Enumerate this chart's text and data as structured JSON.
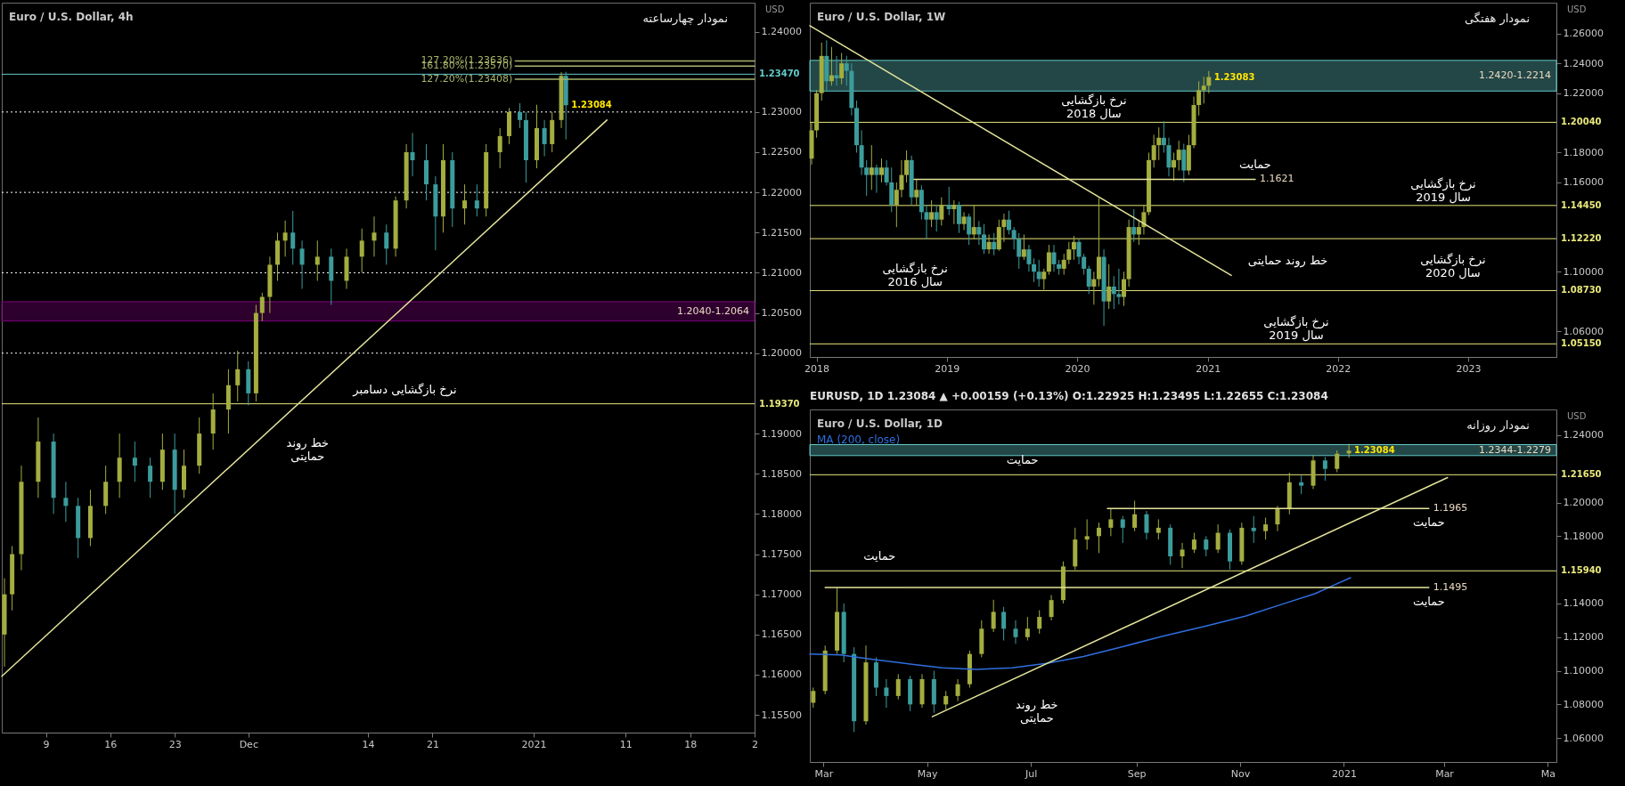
{
  "chart_data": [
    {
      "type": "candlestick",
      "title": "Euro / U.S. Dollar, 4h",
      "subtitle": "نمودار چهارساعته",
      "ylabel": "USD",
      "xlim": [
        "2020-11-04T05:00",
        "2021-01-25"
      ],
      "xticks": [
        {
          "value": "2020-11-09",
          "label": "9"
        },
        {
          "value": "2020-11-16",
          "label": "16"
        },
        {
          "value": "2020-11-23",
          "label": "23"
        },
        {
          "value": "2020-12-01",
          "label": "Dec"
        },
        {
          "value": "2020-12-14",
          "label": "14"
        },
        {
          "value": "2020-12-21",
          "label": "21"
        },
        {
          "value": "2021-01-01",
          "label": "2021"
        },
        {
          "value": "2021-01-11",
          "label": "11"
        },
        {
          "value": "2021-01-18",
          "label": "18"
        },
        {
          "value": "2021-01-25",
          "label": "2"
        }
      ],
      "ylim": [
        1.1528,
        1.2436
      ],
      "yticks": [
        {
          "value": 1.155,
          "label": "1.15500"
        },
        {
          "value": 1.16,
          "label": "1.16000"
        },
        {
          "value": 1.165,
          "label": "1.16500"
        },
        {
          "value": 1.17,
          "label": "1.17000"
        },
        {
          "value": 1.175,
          "label": "1.17500"
        },
        {
          "value": 1.18,
          "label": "1.18000"
        },
        {
          "value": 1.185,
          "label": "1.18500"
        },
        {
          "value": 1.19,
          "label": "1.19000"
        },
        {
          "value": 1.2,
          "label": "1.20000"
        },
        {
          "value": 1.205,
          "label": "1.20500"
        },
        {
          "value": 1.21,
          "label": "1.21000"
        },
        {
          "value": 1.215,
          "label": "1.21500"
        },
        {
          "value": 1.22,
          "label": "1.22000"
        },
        {
          "value": 1.225,
          "label": "1.22500"
        },
        {
          "value": 1.23,
          "label": "1.23000"
        },
        {
          "value": 1.24,
          "label": "1.24000"
        }
      ],
      "series": [
        {
          "color": "#a4ad3f",
          "x": [
            "2020-11-04T12:00",
            "2020-11-05T08:00",
            "2020-11-06T08:00",
            "2020-11-08T04:00",
            "2020-11-13T20:00",
            "2020-11-15T12:00",
            "2020-11-17T00:00",
            "2020-11-21T16:00",
            "2020-11-24T00:00",
            "2020-11-25T16:00",
            "2020-11-27T04:00",
            "2020-11-28T20:00",
            "2020-11-29T20:00",
            "2020-12-01T20:00",
            "2020-12-02T12:00",
            "2020-12-03T08:00",
            "2020-12-04T04:00",
            "2020-12-05T00:00",
            "2020-12-08T12:00",
            "2020-12-11T16:00",
            "2020-12-13T08:00",
            "2020-12-14T16:00",
            "2020-12-17T00:00",
            "2020-12-18T04:00",
            "2020-12-22T04:00",
            "2020-12-24T12:00",
            "2020-12-26T20:00",
            "2020-12-28T08:00",
            "2020-12-29T08:00",
            "2021-01-01T08:00",
            "2021-01-03T00:00",
            "2021-01-04T00:00"
          ],
          "ohlc": [
            [
              1.165,
              1.172,
              1.161,
              1.17
            ],
            [
              1.17,
              1.176,
              1.168,
              1.175
            ],
            [
              1.175,
              1.186,
              1.173,
              1.184
            ],
            [
              1.184,
              1.192,
              1.182,
              1.189
            ],
            [
              1.177,
              1.183,
              1.176,
              1.181
            ],
            [
              1.181,
              1.186,
              1.18,
              1.184
            ],
            [
              1.184,
              1.19,
              1.182,
              1.187
            ],
            [
              1.184,
              1.19,
              1.183,
              1.188
            ],
            [
              1.183,
              1.188,
              1.182,
              1.186
            ],
            [
              1.186,
              1.192,
              1.185,
              1.19
            ],
            [
              1.19,
              1.195,
              1.188,
              1.193
            ],
            [
              1.193,
              1.198,
              1.19,
              1.196
            ],
            [
              1.196,
              1.2003,
              1.194,
              1.198
            ],
            [
              1.195,
              1.206,
              1.194,
              1.205
            ],
            [
              1.205,
              1.2075,
              1.204,
              1.207
            ],
            [
              1.207,
              1.212,
              1.205,
              1.211
            ],
            [
              1.211,
              1.215,
              1.209,
              1.214
            ],
            [
              1.214,
              1.2165,
              1.212,
              1.215
            ],
            [
              1.211,
              1.214,
              1.209,
              1.212
            ],
            [
              1.209,
              1.213,
              1.208,
              1.212
            ],
            [
              1.212,
              1.2155,
              1.21,
              1.214
            ],
            [
              1.214,
              1.217,
              1.212,
              1.215
            ],
            [
              1.213,
              1.2195,
              1.212,
              1.219
            ],
            [
              1.219,
              1.226,
              1.218,
              1.225
            ],
            [
              1.217,
              1.226,
              1.215,
              1.224
            ],
            [
              1.218,
              1.221,
              1.216,
              1.219
            ],
            [
              1.218,
              1.226,
              1.217,
              1.225
            ],
            [
              1.225,
              1.228,
              1.223,
              1.227
            ],
            [
              1.227,
              1.2305,
              1.226,
              1.23
            ],
            [
              1.224,
              1.2309,
              1.223,
              1.228
            ],
            [
              1.226,
              1.23,
              1.225,
              1.229
            ],
            [
              1.229,
              1.23495,
              1.228,
              1.2345
            ]
          ]
        },
        {
          "color": "#3c9c9c",
          "x": [
            "2020-11-09T20:00",
            "2020-11-11T04:00",
            "2020-11-12T12:00",
            "2020-11-18T16:00",
            "2020-11-20T08:00",
            "2020-11-23T00:00",
            "2020-12-01T00:00",
            "2020-12-05T20:00",
            "2020-12-06T20:00",
            "2020-12-10T00:00",
            "2020-12-16T00:00",
            "2020-12-18T20:00",
            "2020-12-20T08:00",
            "2020-12-21T08:00",
            "2020-12-23T04:00",
            "2020-12-25T20:00",
            "2020-12-30T12:00",
            "2020-12-31T04:00",
            "2021-01-02T04:00",
            "2021-01-04T12:00"
          ],
          "ohlc": [
            [
              1.189,
              1.19,
              1.18,
              1.182
            ],
            [
              1.182,
              1.184,
              1.179,
              1.181
            ],
            [
              1.181,
              1.182,
              1.1745,
              1.177
            ],
            [
              1.187,
              1.189,
              1.184,
              1.186
            ],
            [
              1.186,
              1.187,
              1.182,
              1.184
            ],
            [
              1.188,
              1.19,
              1.18,
              1.183
            ],
            [
              1.198,
              1.199,
              1.1935,
              1.195
            ],
            [
              1.215,
              1.2177,
              1.211,
              1.213
            ],
            [
              1.213,
              1.214,
              1.208,
              1.211
            ],
            [
              1.212,
              1.213,
              1.206,
              1.209
            ],
            [
              1.215,
              1.216,
              1.211,
              1.213
            ],
            [
              1.225,
              1.2274,
              1.222,
              1.224
            ],
            [
              1.224,
              1.226,
              1.219,
              1.221
            ],
            [
              1.221,
              1.222,
              1.2128,
              1.217
            ],
            [
              1.224,
              1.225,
              1.2157,
              1.218
            ],
            [
              1.219,
              1.221,
              1.217,
              1.218
            ],
            [
              1.23,
              1.2311,
              1.228,
              1.229
            ],
            [
              1.229,
              1.23,
              1.2212,
              1.224
            ],
            [
              1.228,
              1.229,
              1.2245,
              1.226
            ],
            [
              1.2345,
              1.235,
              1.2266,
              1.23084
            ]
          ]
        },
        {
          "type": "line",
          "color": "#e3e39a",
          "x": [
            "2020-11-04T05:00",
            "2021-01-08T23:00"
          ],
          "values": [
            1.1598,
            1.229
          ]
        },
        {
          "type": "line",
          "name": "127.20%(1.23636)",
          "color": "#a9b46a",
          "x": [
            "2020-12-30T00:00",
            "2021-01-25"
          ],
          "values": [
            1.23636,
            1.23636
          ]
        },
        {
          "type": "line",
          "name": "161.80%(1.23570)",
          "color": "#a9b46a",
          "x": [
            "2020-12-30T00:00",
            "2021-01-25"
          ],
          "values": [
            1.2357,
            1.2357
          ]
        },
        {
          "type": "line",
          "name": "127.20%(1.23408)",
          "color": "#a9b46a",
          "x": [
            "2020-12-30T00:00",
            "2021-01-25"
          ],
          "values": [
            1.23408,
            1.23408
          ]
        }
      ],
      "ref_lines": [
        {
          "axis": "y",
          "value": 1.2347,
          "label": "1.23470",
          "color": "#63c9c9"
        },
        {
          "axis": "y",
          "value": 1.23,
          "color": "#ffffff",
          "line_style": "dotted"
        },
        {
          "axis": "y",
          "value": 1.22,
          "color": "#ffffff",
          "line_style": "dotted"
        },
        {
          "axis": "y",
          "value": 1.21,
          "color": "#ffffff",
          "line_style": "dotted"
        },
        {
          "axis": "y",
          "value": 1.2,
          "color": "#ffffff",
          "line_style": "dotted"
        },
        {
          "axis": "y",
          "value": 1.1937,
          "label": "1.19370",
          "color": "#e8e87c"
        }
      ],
      "bands": [
        {
          "axis": "y",
          "from": 1.204,
          "to": 1.2064,
          "label": "1.2040-1.2064",
          "color": "#800080"
        }
      ],
      "annotations": [
        {
          "text": "1.23084",
          "x": "2021-01-04T12:00",
          "y": 1.23084
        },
        {
          "text": "نرخ بازگشایی دسامبر",
          "x": "2020-12-18",
          "y": 1.1937
        },
        {
          "text": "خط روند\nحمایتی",
          "x": "2020-12-03T20:00",
          "y": 1.1914
        }
      ]
    },
    {
      "type": "candlestick",
      "title": "Euro / U.S. Dollar, 1W",
      "subtitle": "نمودار هفتگی",
      "ylabel": "USD",
      "xlim": [
        "2017-12-13",
        "2023-09-05"
      ],
      "xticks": [
        {
          "value": "2018-01-01",
          "label": "2018"
        },
        {
          "value": "2019-01-01",
          "label": "2019"
        },
        {
          "value": "2020-01-01",
          "label": "2020"
        },
        {
          "value": "2021-01-01",
          "label": "2021"
        },
        {
          "value": "2022-01-01",
          "label": "2022"
        },
        {
          "value": "2023-01-01",
          "label": "2023"
        }
      ],
      "ylim": [
        1.0427,
        1.2808
      ],
      "yticks": [
        {
          "value": 1.06,
          "label": "1.06000"
        },
        {
          "value": 1.1,
          "label": "1.10000"
        },
        {
          "value": 1.16,
          "label": "1.16000"
        },
        {
          "value": 1.18,
          "label": "1.18000"
        },
        {
          "value": 1.22,
          "label": "1.22000"
        },
        {
          "value": 1.24,
          "label": "1.24000"
        },
        {
          "value": 1.26,
          "label": "1.26000"
        }
      ],
      "series": [
        {
          "color": "#a4ad3f",
          "x": [
            "2017-12-18",
            "2018-01-01",
            "2018-01-15",
            "2018-02-12",
            "2018-03-12",
            "2018-06-04",
            "2018-07-02",
            "2018-08-13",
            "2018-08-27",
            "2018-09-10",
            "2018-10-08",
            "2018-11-19",
            "2018-12-17",
            "2019-01-21",
            "2019-02-18",
            "2019-03-18",
            "2019-04-29",
            "2019-05-27",
            "2019-06-10",
            "2019-08-05",
            "2019-09-30",
            "2019-10-14",
            "2019-11-25",
            "2019-12-09",
            "2019-12-23",
            "2020-02-17",
            "2020-03-02",
            "2020-03-30",
            "2020-05-11",
            "2020-05-25",
            "2020-06-22",
            "2020-07-06",
            "2020-07-20",
            "2020-08-03",
            "2020-08-17",
            "2020-09-28",
            "2020-10-12",
            "2020-11-09",
            "2020-11-23",
            "2020-12-07",
            "2020-12-21",
            "2021-01-04"
          ],
          "ohlc": [
            [
              1.176,
              1.2,
              1.172,
              1.195
            ],
            [
              1.195,
              1.222,
              1.19,
              1.22
            ],
            [
              1.22,
              1.254,
              1.215,
              1.245
            ],
            [
              1.228,
              1.251,
              1.225,
              1.232
            ],
            [
              1.23,
              1.247,
              1.226,
              1.24
            ],
            [
              1.165,
              1.185,
              1.155,
              1.17
            ],
            [
              1.165,
              1.176,
              1.16,
              1.17
            ],
            [
              1.145,
              1.16,
              1.13,
              1.155
            ],
            [
              1.155,
              1.175,
              1.15,
              1.165
            ],
            [
              1.165,
              1.1815,
              1.16,
              1.175
            ],
            [
              1.15,
              1.162,
              1.145,
              1.155
            ],
            [
              1.135,
              1.148,
              1.13,
              1.14
            ],
            [
              1.135,
              1.15,
              1.131,
              1.145
            ],
            [
              1.142,
              1.148,
              1.132,
              1.145
            ],
            [
              1.132,
              1.14,
              1.128,
              1.137
            ],
            [
              1.125,
              1.145,
              1.122,
              1.13
            ],
            [
              1.115,
              1.125,
              1.112,
              1.12
            ],
            [
              1.115,
              1.135,
              1.114,
              1.13
            ],
            [
              1.13,
              1.139,
              1.12,
              1.135
            ],
            [
              1.11,
              1.125,
              1.108,
              1.115
            ],
            [
              1.095,
              1.102,
              1.088,
              1.1
            ],
            [
              1.1,
              1.118,
              1.098,
              1.113
            ],
            [
              1.102,
              1.112,
              1.098,
              1.108
            ],
            [
              1.108,
              1.12,
              1.105,
              1.115
            ],
            [
              1.115,
              1.124,
              1.108,
              1.12
            ],
            [
              1.09,
              1.1,
              1.0778,
              1.095
            ],
            [
              1.095,
              1.1495,
              1.09,
              1.11
            ],
            [
              1.08,
              1.105,
              1.075,
              1.09
            ],
            [
              1.083,
              1.1,
              1.077,
              1.095
            ],
            [
              1.095,
              1.135,
              1.09,
              1.13
            ],
            [
              1.125,
              1.135,
              1.118,
              1.13
            ],
            [
              1.13,
              1.145,
              1.125,
              1.14
            ],
            [
              1.14,
              1.18,
              1.138,
              1.175
            ],
            [
              1.175,
              1.192,
              1.17,
              1.185
            ],
            [
              1.185,
              1.197,
              1.175,
              1.19
            ],
            [
              1.17,
              1.18,
              1.161,
              1.175
            ],
            [
              1.175,
              1.188,
              1.168,
              1.182
            ],
            [
              1.168,
              1.192,
              1.165,
              1.185
            ],
            [
              1.185,
              1.2177,
              1.183,
              1.212
            ],
            [
              1.212,
              1.228,
              1.205,
              1.222
            ],
            [
              1.222,
              1.231,
              1.213,
              1.225
            ],
            [
              1.225,
              1.2349,
              1.22,
              1.23083
            ]
          ]
        },
        {
          "color": "#3c9c9c",
          "x": [
            "2018-01-29",
            "2018-02-26",
            "2018-03-26",
            "2018-04-09",
            "2018-04-23",
            "2018-05-07",
            "2018-05-21",
            "2018-06-18",
            "2018-07-16",
            "2018-07-30",
            "2018-09-24",
            "2018-10-22",
            "2018-11-05",
            "2018-12-03",
            "2019-01-07",
            "2019-02-04",
            "2019-03-04",
            "2019-04-01",
            "2019-04-15",
            "2019-05-13",
            "2019-06-24",
            "2019-07-08",
            "2019-07-22",
            "2019-08-19",
            "2019-09-02",
            "2019-09-16",
            "2019-10-28",
            "2019-11-11",
            "2020-01-06",
            "2020-01-20",
            "2020-02-03",
            "2020-03-16",
            "2020-04-13",
            "2020-04-27",
            "2020-06-08",
            "2020-08-31",
            "2020-09-14",
            "2020-10-26"
          ],
          "ohlc": [
            [
              1.245,
              1.2555,
              1.221,
              1.228
            ],
            [
              1.232,
              1.245,
              1.225,
              1.23
            ],
            [
              1.24,
              1.245,
              1.225,
              1.235
            ],
            [
              1.235,
              1.24,
              1.205,
              1.21
            ],
            [
              1.21,
              1.215,
              1.18,
              1.185
            ],
            [
              1.185,
              1.195,
              1.165,
              1.17
            ],
            [
              1.17,
              1.175,
              1.151,
              1.165
            ],
            [
              1.17,
              1.172,
              1.153,
              1.165
            ],
            [
              1.17,
              1.175,
              1.158,
              1.16
            ],
            [
              1.16,
              1.17,
              1.14,
              1.145
            ],
            [
              1.175,
              1.178,
              1.145,
              1.15
            ],
            [
              1.155,
              1.158,
              1.135,
              1.14
            ],
            [
              1.14,
              1.145,
              1.122,
              1.135
            ],
            [
              1.14,
              1.145,
              1.127,
              1.135
            ],
            [
              1.145,
              1.157,
              1.138,
              1.142
            ],
            [
              1.145,
              1.147,
              1.126,
              1.132
            ],
            [
              1.137,
              1.139,
              1.118,
              1.125
            ],
            [
              1.13,
              1.134,
              1.118,
              1.125
            ],
            [
              1.125,
              1.132,
              1.112,
              1.115
            ],
            [
              1.12,
              1.126,
              1.111,
              1.115
            ],
            [
              1.135,
              1.141,
              1.125,
              1.128
            ],
            [
              1.128,
              1.13,
              1.115,
              1.122
            ],
            [
              1.122,
              1.126,
              1.102,
              1.11
            ],
            [
              1.115,
              1.118,
              1.1,
              1.105
            ],
            [
              1.105,
              1.109,
              1.093,
              1.1
            ],
            [
              1.1,
              1.108,
              1.09,
              1.095
            ],
            [
              1.113,
              1.118,
              1.1,
              1.105
            ],
            [
              1.105,
              1.108,
              1.098,
              1.102
            ],
            [
              1.12,
              1.122,
              1.105,
              1.11
            ],
            [
              1.11,
              1.112,
              1.098,
              1.102
            ],
            [
              1.102,
              1.104,
              1.085,
              1.09
            ],
            [
              1.11,
              1.115,
              1.0636,
              1.08
            ],
            [
              1.09,
              1.097,
              1.075,
              1.085
            ],
            [
              1.085,
              1.102,
              1.078,
              1.083
            ],
            [
              1.13,
              1.142,
              1.12,
              1.125
            ],
            [
              1.19,
              1.2011,
              1.18,
              1.185
            ],
            [
              1.185,
              1.19,
              1.164,
              1.17
            ],
            [
              1.182,
              1.186,
              1.1602,
              1.168
            ]
          ]
        },
        {
          "type": "line",
          "color": "#e3e39a",
          "x": [
            "2017-12-13",
            "2021-03-08"
          ],
          "values": [
            1.2653,
            1.0975
          ]
        },
        {
          "type": "line",
          "name": "1.1621",
          "color": "#e3e39a",
          "x": [
            "2018-10-01",
            "2021-05-14"
          ],
          "values": [
            1.1621,
            1.1621
          ]
        }
      ],
      "ref_lines": [
        {
          "axis": "y",
          "value": 1.2004,
          "label": "1.20040",
          "color": "#e8e87c"
        },
        {
          "axis": "y",
          "value": 1.1445,
          "label": "1.14450",
          "color": "#e8e87c"
        },
        {
          "axis": "y",
          "value": 1.1222,
          "label": "1.12220",
          "color": "#e8e87c"
        },
        {
          "axis": "y",
          "value": 1.0873,
          "label": "1.08730",
          "color": "#e8e87c"
        },
        {
          "axis": "y",
          "value": 1.0515,
          "label": "1.05150",
          "color": "#e8e87c"
        }
      ],
      "bands": [
        {
          "axis": "y",
          "from": 1.2214,
          "to": 1.242,
          "label": "1.2420-1.2214",
          "color": "#63c9c9"
        }
      ],
      "annotations": [
        {
          "text": "1.23083",
          "x": "2021-01-04",
          "y": 1.23083
        },
        {
          "text": "نرخ بازگشایی\nسال 2018",
          "x": "2020-02-17",
          "y": 1.2004
        },
        {
          "text": "حمایت",
          "x": "2021-05-14",
          "y": 1.1621
        },
        {
          "text": "نرخ بازگشایی\nسال 2019",
          "x": "2022-10-23",
          "y": 1.1445
        },
        {
          "text": "خط روند حمایتی",
          "x": "2021-03-08",
          "y": 1.0975
        },
        {
          "text": "نرخ بازگشایی\nسال 2020",
          "x": "2022-11-19",
          "y": 1.1222
        },
        {
          "text": "نرخ بازگشایی\nسال 2016",
          "x": "2018-10-04",
          "y": 1.0873
        },
        {
          "text": "نرخ بازگشایی\nسال 2019",
          "x": "2021-09-06",
          "y": 1.0515
        }
      ]
    },
    {
      "type": "candlestick",
      "title": "Euro / U.S. Dollar, 1D",
      "subtitle": "نمودار روزانه",
      "ylabel": "USD",
      "xlim": [
        "2020-02-22",
        "2021-05-06"
      ],
      "xticks": [
        {
          "value": "2020-03-01",
          "label": "Mar"
        },
        {
          "value": "2020-05-01",
          "label": "May"
        },
        {
          "value": "2020-07-01",
          "label": "Jul"
        },
        {
          "value": "2020-09-01",
          "label": "Sep"
        },
        {
          "value": "2020-11-01",
          "label": "Nov"
        },
        {
          "value": "2021-01-01",
          "label": "2021"
        },
        {
          "value": "2021-03-01",
          "label": "Mar"
        },
        {
          "value": "2021-05-01",
          "label": "Ma"
        }
      ],
      "ylim": [
        1.0458,
        1.2553
      ],
      "yticks": [
        {
          "value": 1.06,
          "label": "1.06000"
        },
        {
          "value": 1.08,
          "label": "1.08000"
        },
        {
          "value": 1.1,
          "label": "1.10000"
        },
        {
          "value": 1.12,
          "label": "1.12000"
        },
        {
          "value": 1.14,
          "label": "1.14000"
        },
        {
          "value": 1.18,
          "label": "1.18000"
        },
        {
          "value": 1.2,
          "label": "1.20000"
        },
        {
          "value": 1.24,
          "label": "1.24000"
        }
      ],
      "series": [
        {
          "color": "#a4ad3f",
          "x": [
            "2020-02-24",
            "2020-03-02",
            "2020-03-09",
            "2020-03-26",
            "2020-04-14",
            "2020-04-28",
            "2020-05-12",
            "2020-05-19",
            "2020-05-26",
            "2020-06-02",
            "2020-06-09",
            "2020-06-29",
            "2020-07-06",
            "2020-07-13",
            "2020-07-20",
            "2020-07-27",
            "2020-08-03",
            "2020-08-10",
            "2020-08-17",
            "2020-08-31",
            "2020-09-14",
            "2020-09-28",
            "2020-10-05",
            "2020-10-19",
            "2020-11-02",
            "2020-11-16",
            "2020-11-23",
            "2020-11-30",
            "2020-12-14",
            "2020-12-28",
            "2021-01-04"
          ],
          "ohlc": [
            [
              1.081,
              1.09,
              1.078,
              1.088
            ],
            [
              1.088,
              1.115,
              1.086,
              1.112
            ],
            [
              1.112,
              1.1495,
              1.11,
              1.135
            ],
            [
              1.07,
              1.115,
              1.068,
              1.105
            ],
            [
              1.085,
              1.098,
              1.083,
              1.095
            ],
            [
              1.08,
              1.098,
              1.078,
              1.095
            ],
            [
              1.08,
              1.088,
              1.077,
              1.085
            ],
            [
              1.085,
              1.095,
              1.082,
              1.092
            ],
            [
              1.092,
              1.112,
              1.09,
              1.11
            ],
            [
              1.11,
              1.13,
              1.108,
              1.125
            ],
            [
              1.125,
              1.1422,
              1.123,
              1.135
            ],
            [
              1.12,
              1.132,
              1.118,
              1.125
            ],
            [
              1.125,
              1.136,
              1.122,
              1.132
            ],
            [
              1.132,
              1.145,
              1.13,
              1.142
            ],
            [
              1.142,
              1.165,
              1.14,
              1.162
            ],
            [
              1.162,
              1.185,
              1.16,
              1.178
            ],
            [
              1.178,
              1.19,
              1.172,
              1.18
            ],
            [
              1.18,
              1.188,
              1.17,
              1.185
            ],
            [
              1.185,
              1.1965,
              1.18,
              1.19
            ],
            [
              1.185,
              1.2011,
              1.183,
              1.193
            ],
            [
              1.182,
              1.19,
              1.178,
              1.185
            ],
            [
              1.168,
              1.176,
              1.161,
              1.172
            ],
            [
              1.172,
              1.182,
              1.17,
              1.178
            ],
            [
              1.172,
              1.187,
              1.17,
              1.182
            ],
            [
              1.165,
              1.188,
              1.163,
              1.185
            ],
            [
              1.183,
              1.191,
              1.178,
              1.187
            ],
            [
              1.187,
              1.198,
              1.183,
              1.196
            ],
            [
              1.196,
              1.2177,
              1.193,
              1.212
            ],
            [
              1.21,
              1.228,
              1.208,
              1.225
            ],
            [
              1.22,
              1.231,
              1.218,
              1.229
            ],
            [
              1.22925,
              1.23495,
              1.22655,
              1.23084
            ]
          ]
        },
        {
          "color": "#3c9c9c",
          "x": [
            "2020-03-13",
            "2020-03-19",
            "2020-04-01",
            "2020-04-07",
            "2020-04-21",
            "2020-05-05",
            "2020-06-15",
            "2020-06-22",
            "2020-08-24",
            "2020-09-07",
            "2020-09-21",
            "2020-10-12",
            "2020-10-26",
            "2020-11-09",
            "2020-12-07",
            "2020-12-21"
          ],
          "ohlc": [
            [
              1.135,
              1.14,
              1.105,
              1.11
            ],
            [
              1.11,
              1.114,
              1.0636,
              1.07
            ],
            [
              1.105,
              1.108,
              1.085,
              1.09
            ],
            [
              1.09,
              1.095,
              1.078,
              1.085
            ],
            [
              1.095,
              1.097,
              1.076,
              1.08
            ],
            [
              1.095,
              1.1,
              1.075,
              1.08
            ],
            [
              1.135,
              1.138,
              1.118,
              1.125
            ],
            [
              1.125,
              1.13,
              1.116,
              1.12
            ],
            [
              1.19,
              1.192,
              1.176,
              1.185
            ],
            [
              1.193,
              1.195,
              1.178,
              1.182
            ],
            [
              1.185,
              1.187,
              1.163,
              1.168
            ],
            [
              1.178,
              1.18,
              1.168,
              1.172
            ],
            [
              1.182,
              1.184,
              1.1602,
              1.165
            ],
            [
              1.185,
              1.192,
              1.176,
              1.183
            ],
            [
              1.212,
              1.216,
              1.205,
              1.21
            ],
            [
              1.225,
              1.227,
              1.213,
              1.22
            ]
          ]
        },
        {
          "type": "line",
          "name": "MA (200, close)",
          "color": "#2f6fe0",
          "x": [
            "2020-02-22",
            "2020-03-11",
            "2020-03-29",
            "2020-04-22",
            "2020-05-10",
            "2020-05-30",
            "2020-06-20",
            "2020-07-11",
            "2020-08-01",
            "2020-08-25",
            "2020-09-17",
            "2020-10-11",
            "2020-11-04",
            "2020-11-28",
            "2020-12-15",
            "2020-12-27",
            "2021-01-05"
          ],
          "values": [
            1.11,
            1.1094,
            1.1069,
            1.1039,
            1.1018,
            1.1008,
            1.1018,
            1.1045,
            1.1085,
            1.1146,
            1.1207,
            1.1263,
            1.1324,
            1.1403,
            1.1458,
            1.1513,
            1.1553
          ]
        },
        {
          "type": "line",
          "color": "#e3e39a",
          "x": [
            "2020-05-04",
            "2021-03-03"
          ],
          "values": [
            1.0727,
            1.2148
          ]
        },
        {
          "type": "line",
          "name": "1.1965",
          "color": "#e3e39a",
          "x": [
            "2020-08-15",
            "2021-02-20"
          ],
          "values": [
            1.1965,
            1.1965
          ]
        },
        {
          "type": "line",
          "name": "1.1495",
          "color": "#e3e39a",
          "x": [
            "2020-03-02",
            "2021-02-20"
          ],
          "values": [
            1.1495,
            1.1495
          ]
        }
      ],
      "ref_lines": [
        {
          "axis": "y",
          "value": 1.2165,
          "label": "1.21650",
          "color": "#e8e87c"
        },
        {
          "axis": "y",
          "value": 1.1594,
          "label": "1.15940",
          "color": "#e8e87c"
        }
      ],
      "bands": [
        {
          "axis": "y",
          "from": 1.2279,
          "to": 1.2344,
          "label": "1.2344-1.2279",
          "color": "#63c9c9"
        }
      ],
      "annotations": [
        "EURUSD, 1D  1.23084 ▲ +0.00159 (+0.13%)  O:1.22925  H:1.23495  L:1.22655  C:1.23084",
        {
          "text": "1.23084",
          "x": "2021-01-04",
          "y": 1.23084
        },
        {
          "text": "حمایت",
          "x": "2020-06-26",
          "y": 1.2165
        },
        {
          "text": "حمایت",
          "x": "2020-04-03",
          "y": 1.1594
        },
        {
          "text": "حمایت",
          "x": "2021-02-20",
          "y": 1.1965
        },
        {
          "text": "حمایت",
          "x": "2021-02-20",
          "y": 1.1495
        },
        {
          "text": "خط روند\nحمایتی",
          "x": "2020-06-15",
          "y": 1.0924
        }
      ]
    }
  ]
}
